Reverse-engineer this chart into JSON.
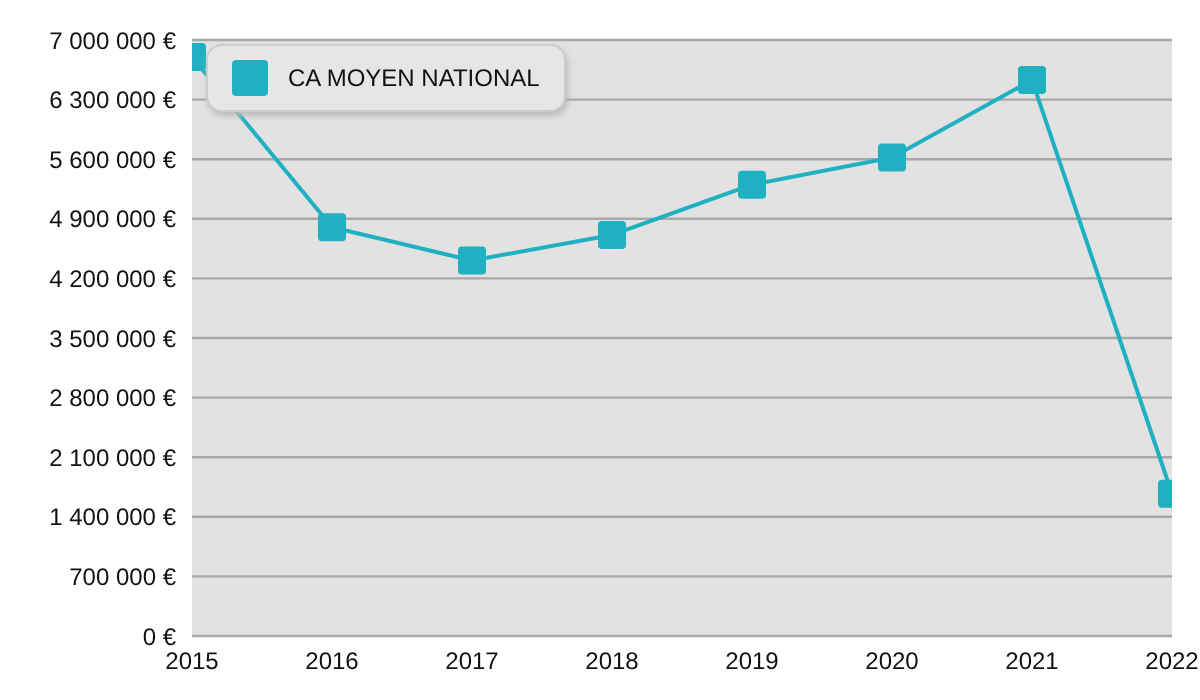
{
  "chart_data": {
    "type": "line",
    "x": [
      2015,
      2016,
      2017,
      2018,
      2019,
      2020,
      2021,
      2022
    ],
    "series": [
      {
        "name": "CA MOYEN NATIONAL",
        "color": "#1fb1c1",
        "values": [
          6800000,
          4800000,
          4410000,
          4710000,
          5300000,
          5620000,
          6530000,
          1670000
        ]
      }
    ],
    "xlim": [
      2015,
      2022
    ],
    "xticks": [
      2015,
      2016,
      2017,
      2018,
      2019,
      2020,
      2021,
      2022
    ],
    "ylim": [
      0,
      7000000
    ],
    "yticks": [
      {
        "value": 0,
        "label": "0 €"
      },
      {
        "value": 700000,
        "label": "700 000 €"
      },
      {
        "value": 1400000,
        "label": "1 400 000 €"
      },
      {
        "value": 2100000,
        "label": "2 100 000 €"
      },
      {
        "value": 2800000,
        "label": "2 800 000 €"
      },
      {
        "value": 3500000,
        "label": "3 500 000 €"
      },
      {
        "value": 4200000,
        "label": "4 200 000 €"
      },
      {
        "value": 4900000,
        "label": "4 900 000 €"
      },
      {
        "value": 5600000,
        "label": "5 600 000 €"
      },
      {
        "value": 6300000,
        "label": "6 300 000 €"
      },
      {
        "value": 7000000,
        "label": "7 000 000 €"
      }
    ],
    "grid": "y",
    "legend": "top left",
    "marker": "square",
    "line_style": "solid"
  }
}
